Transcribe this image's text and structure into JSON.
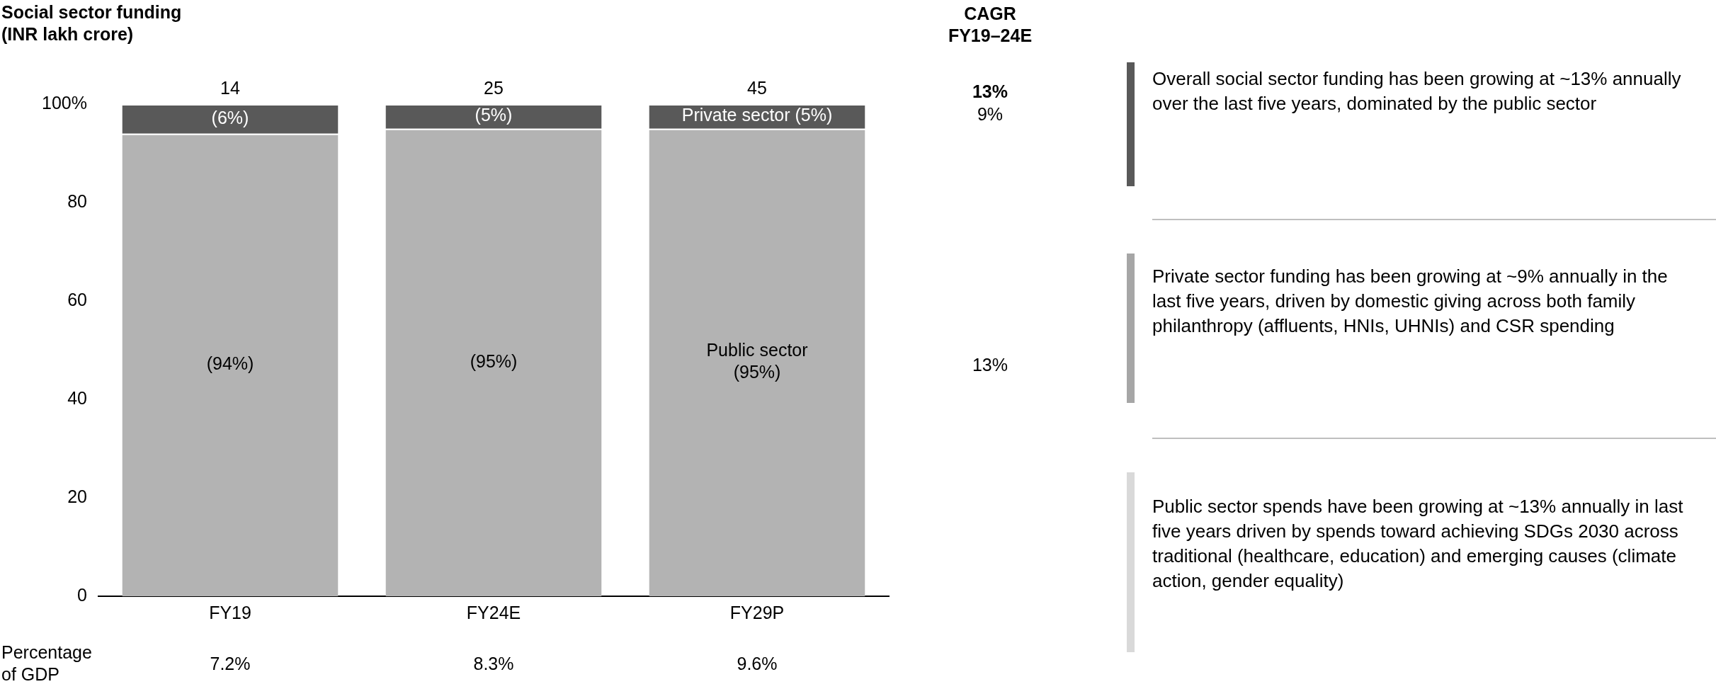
{
  "chart_data": {
    "type": "bar",
    "title": "Social sector funding\n(INR lakh crore)",
    "stacked": true,
    "categories": [
      "FY19",
      "FY24E",
      "FY29P"
    ],
    "series": [
      {
        "color": "#b3b3b3",
        "values": [
          94,
          95,
          95
        ],
        "value_labels": [
          "(94%)",
          "(95%)",
          "Public sector\n(95%)"
        ]
      },
      {
        "color": "#595959",
        "values": [
          6,
          5,
          5
        ],
        "value_labels": [
          "(6%)",
          "(5%)",
          "Private sector (5%)"
        ]
      }
    ],
    "ylim": [
      0,
      100
    ],
    "yticks": [
      0,
      20,
      40,
      60,
      80,
      {
        "value": 100,
        "label": "100%"
      }
    ],
    "grid": false,
    "legend": false,
    "annotations": [
      "CAGR\nFY19–24E",
      "13%",
      "9%",
      "13%",
      "Percentage\nof GDP",
      "7.2%",
      "8.3%",
      "9.6%",
      "Overall social sector funding has been growing at ~13% annually over the last five years, dominated by the public sector",
      "Private sector funding has been growing at ~9% annually in the last five years, driven by domestic giving across both family philanthropy (affluents, HNIs, UHNIs) and CSR spending",
      "Public sector spends have been growing at ~13% annually in last five years driven by spends toward achieving SDGs 2030 across traditional (healthcare, education) and emerging causes (climate action, gender equality)",
      {
        "text": "14",
        "x": "FY19",
        "y": 100
      },
      {
        "text": "25",
        "x": "FY24E",
        "y": 100
      },
      {
        "text": "45",
        "x": "FY29P",
        "y": 100
      }
    ]
  }
}
